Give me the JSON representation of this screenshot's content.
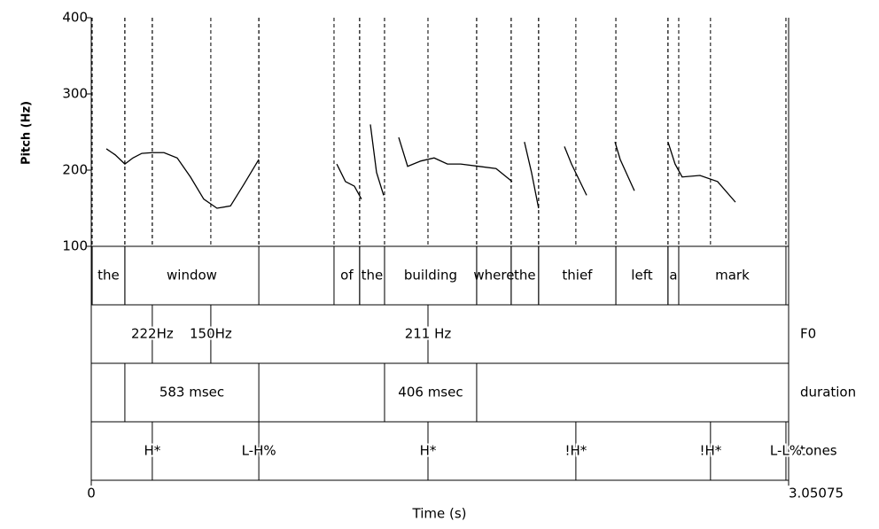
{
  "chart_data": {
    "type": "line",
    "ylabel": "Pitch (Hz)",
    "xlabel": "Time (s)",
    "ylim": [
      100,
      400
    ],
    "yticks": [
      100,
      200,
      300,
      400
    ],
    "xlim": [
      0,
      3.05075
    ],
    "xticks": [
      0,
      3.05075
    ],
    "x": [
      0.066,
      0.105,
      0.147,
      0.182,
      0.221,
      0.267,
      0.318,
      0.376,
      0.434,
      0.492,
      0.55,
      0.609,
      0.667,
      0.733,
      null,
      1.074,
      1.112,
      1.151,
      1.182,
      null,
      1.221,
      1.248,
      1.279,
      null,
      1.345,
      1.384,
      1.442,
      1.5,
      1.558,
      1.616,
      1.694,
      1.771,
      1.841,
      null,
      1.895,
      1.926,
      1.957,
      null,
      2.07,
      2.101,
      2.167,
      null,
      2.291,
      2.314,
      2.376,
      null,
      2.523,
      2.554,
      2.585,
      2.663,
      2.74,
      2.818
    ],
    "series": [
      {
        "color": "#000000",
        "values": [
          228,
          220,
          208,
          216,
          222,
          223,
          223,
          216,
          191,
          162,
          150,
          153,
          181,
          214,
          null,
          208,
          185,
          179,
          162,
          null,
          260,
          197,
          167,
          null,
          243,
          205,
          212,
          216,
          208,
          208,
          205,
          202,
          185,
          null,
          237,
          197,
          150,
          null,
          231,
          208,
          167,
          null,
          237,
          214,
          173,
          null,
          237,
          208,
          191,
          193,
          185,
          158
        ]
      }
    ],
    "tiers": {
      "words": {
        "intervals": [
          {
            "label": "the",
            "start": 0.004,
            "end": 0.147
          },
          {
            "label": "window",
            "start": 0.147,
            "end": 0.733
          },
          {
            "label": "of",
            "start": 1.062,
            "end": 1.174
          },
          {
            "label": "the",
            "start": 1.174,
            "end": 1.283
          },
          {
            "label": "building",
            "start": 1.283,
            "end": 1.686
          },
          {
            "label": "where",
            "start": 1.686,
            "end": 1.837
          },
          {
            "label": "the",
            "start": 1.837,
            "end": 1.957
          },
          {
            "label": "thief",
            "start": 1.957,
            "end": 2.295
          },
          {
            "label": "left",
            "start": 2.295,
            "end": 2.523
          },
          {
            "label": "a",
            "start": 2.523,
            "end": 2.57
          },
          {
            "label": "mark",
            "start": 2.57,
            "end": 3.039
          }
        ]
      },
      "f0": {
        "name": "F0",
        "points": [
          {
            "label": "222Hz",
            "time": 0.267
          },
          {
            "label": "150Hz",
            "time": 0.523
          },
          {
            "label": "211 Hz",
            "time": 1.473
          }
        ]
      },
      "duration": {
        "name": "duration",
        "intervals": [
          {
            "label": "583 msec",
            "start": 0.147,
            "end": 0.733
          },
          {
            "label": "406 msec",
            "start": 1.283,
            "end": 1.686
          }
        ]
      },
      "tones": {
        "name": "tones",
        "points": [
          {
            "label": "H*",
            "time": 0.267
          },
          {
            "label": "L-H%",
            "time": 0.733
          },
          {
            "label": "H*",
            "time": 1.473
          },
          {
            "label": "!H*",
            "time": 2.12
          },
          {
            "label": "!H*",
            "time": 2.709
          },
          {
            "label": "L-L%",
            "time": 3.039
          }
        ]
      }
    }
  }
}
